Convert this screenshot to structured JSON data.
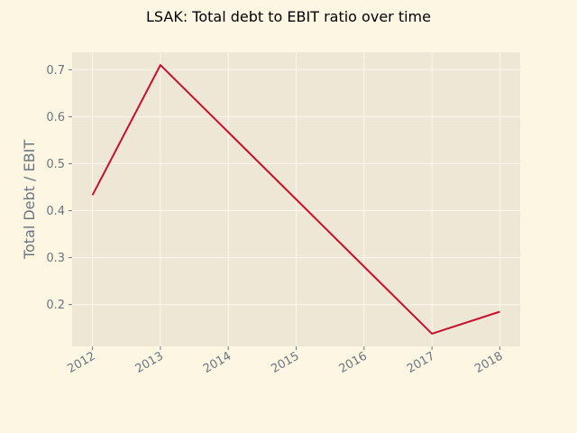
{
  "chart_data": {
    "type": "line",
    "title": "LSAK: Total debt to EBIT ratio over time",
    "xlabel": "",
    "ylabel": "Total Debt / EBIT",
    "x": [
      "2012",
      "2013",
      "2014",
      "2015",
      "2016",
      "2017",
      "2018"
    ],
    "series": [
      {
        "values": [
          0.433,
          0.71,
          0.567,
          0.424,
          0.281,
          0.138,
          0.185
        ],
        "color": "#c8102e"
      }
    ],
    "yticks": [
      "0.2",
      "0.3",
      "0.4",
      "0.5",
      "0.6",
      "0.7"
    ],
    "ylim": [
      0.111,
      0.737
    ],
    "grid": true,
    "legend": "none"
  },
  "colors": {
    "background": "#fdf6e3",
    "plot_area": "#efe7d5",
    "grid": "#fbf7ee",
    "text": "#6b7580"
  }
}
